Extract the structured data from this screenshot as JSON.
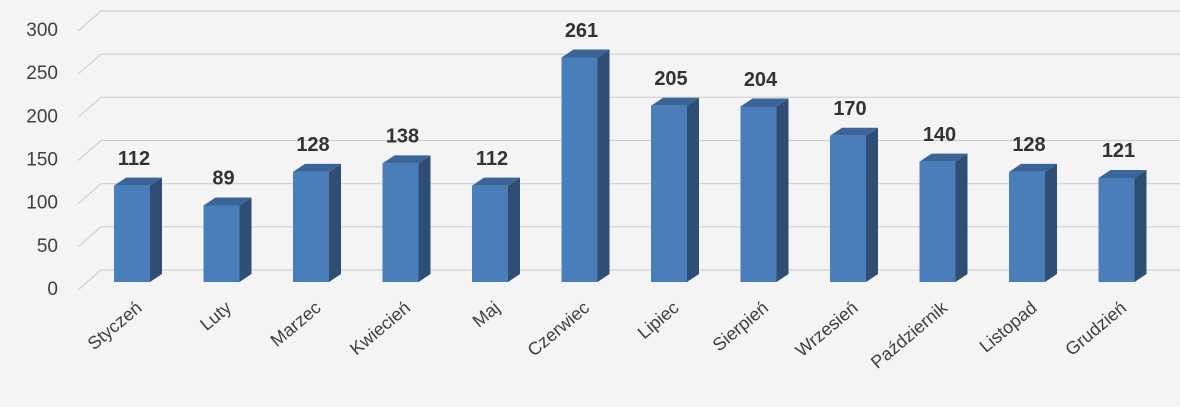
{
  "chart_data": {
    "type": "bar3d",
    "categories": [
      "Styczeń",
      "Luty",
      "Marzec",
      "Kwiecień",
      "Maj",
      "Czerwiec",
      "Lipiec",
      "Sierpień",
      "Wrzesień",
      "Październik",
      "Listopad",
      "Grudzień"
    ],
    "values": [
      112,
      89,
      128,
      138,
      112,
      261,
      205,
      204,
      170,
      140,
      128,
      121
    ],
    "color": "#4a7ebb",
    "ylim": [
      0,
      300
    ],
    "yticks": [
      0,
      50,
      100,
      150,
      200,
      250,
      300
    ],
    "grid": true
  }
}
